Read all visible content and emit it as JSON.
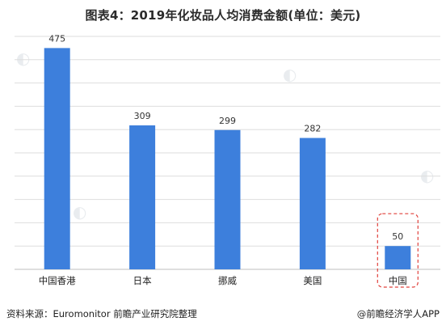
{
  "title": "图表4：2019年化妆品人均消费金额(单位：美元)",
  "chart_data": {
    "type": "bar",
    "categories": [
      "中国香港",
      "日本",
      "挪威",
      "美国",
      "中国"
    ],
    "values": [
      475,
      309,
      299,
      282,
      50
    ],
    "ylim": [
      0,
      500
    ],
    "grid": true,
    "bar_color": "#3d7fdc",
    "highlight_category": "中国",
    "highlight_color": "#e0403a"
  },
  "footer": {
    "source": "资料来源：Euromonitor 前瞻产业研究院整理",
    "brand": "@前瞻经济学人APP"
  }
}
